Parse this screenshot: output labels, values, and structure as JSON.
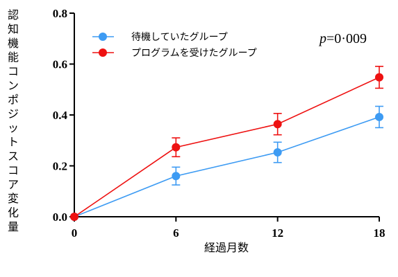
{
  "chart_data": {
    "type": "line",
    "xlabel": "経過月数",
    "ylabel": "認知機能コンポジットスコア変化量",
    "x": [
      0,
      6,
      12,
      18
    ],
    "x_ticks": [
      "0",
      "6",
      "12",
      "18"
    ],
    "y_ticks": [
      "0.0",
      "0.2",
      "0.4",
      "0.6",
      "0.8"
    ],
    "xlim": [
      0,
      18
    ],
    "ylim": [
      0,
      0.8
    ],
    "grid": false,
    "legend_position": "top-left",
    "annotation": {
      "italic": "p",
      "text": "=0·009"
    },
    "series": [
      {
        "name": "待機していたグループ",
        "color": "#3d9bf3",
        "values": [
          0.0,
          0.16,
          0.253,
          0.392
        ],
        "err": [
          0,
          0.035,
          0.04,
          0.042
        ]
      },
      {
        "name": "プログラムを受けたグループ",
        "color": "#ee1111",
        "values": [
          0.0,
          0.273,
          0.364,
          0.548
        ],
        "err": [
          0,
          0.037,
          0.042,
          0.043
        ]
      }
    ]
  }
}
